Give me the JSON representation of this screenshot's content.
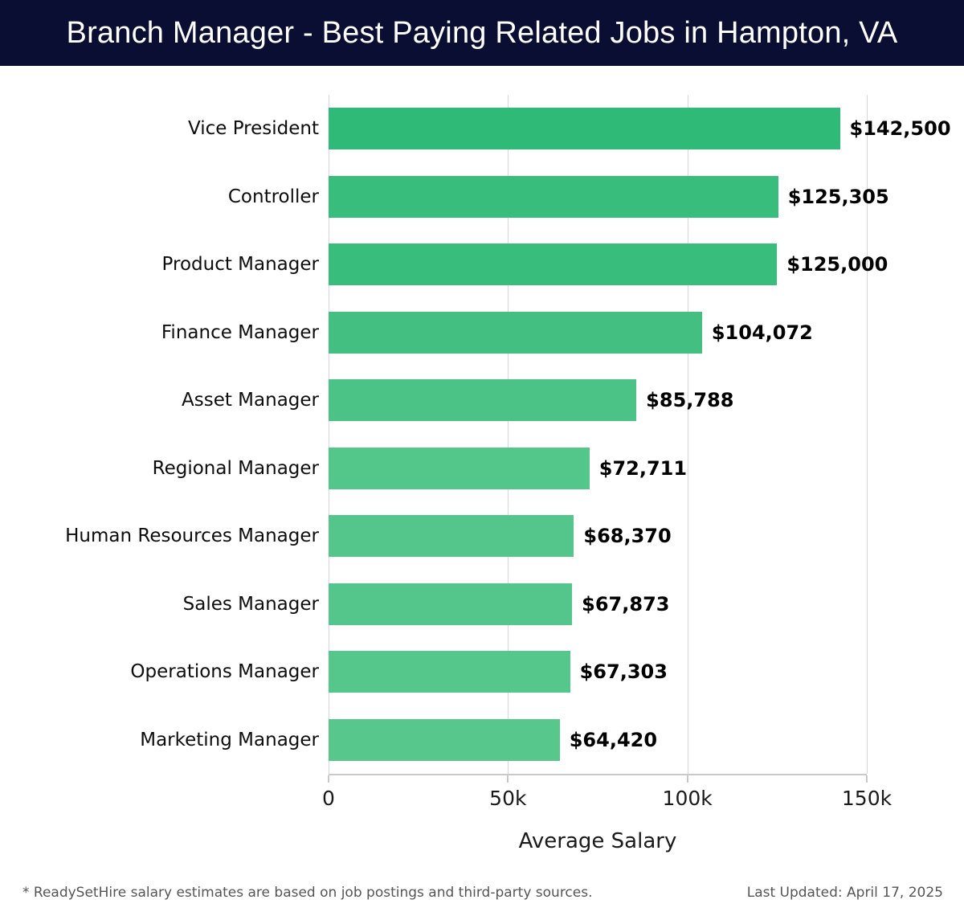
{
  "header": {
    "title": "Branch Manager - Best Paying Related Jobs in Hampton, VA",
    "background_color": "#0b0e33",
    "text_color": "#ffffff"
  },
  "chart_data": {
    "type": "bar",
    "orientation": "horizontal",
    "title": "Branch Manager - Best Paying Related Jobs in Hampton, VA",
    "categories": [
      "Vice President",
      "Controller",
      "Product Manager",
      "Finance Manager",
      "Asset Manager",
      "Regional Manager",
      "Human Resources Manager",
      "Sales Manager",
      "Operations Manager",
      "Marketing Manager"
    ],
    "values": [
      142500,
      125305,
      125000,
      104072,
      85788,
      72711,
      68370,
      67873,
      67303,
      64420
    ],
    "value_labels": [
      "$142,500",
      "$125,305",
      "$125,000",
      "$104,072",
      "$85,788",
      "$72,711",
      "$68,370",
      "$67,873",
      "$67,303",
      "$64,420"
    ],
    "xlabel": "Average Salary",
    "xlim": [
      0,
      150000
    ],
    "x_ticks": [
      {
        "value": 0,
        "label": "0"
      },
      {
        "value": 50000,
        "label": "50k"
      },
      {
        "value": 100000,
        "label": "100k"
      },
      {
        "value": 150000,
        "label": "150k"
      }
    ],
    "grid": true,
    "legend": false,
    "bar_color_high": "#2fba77",
    "bar_color_low": "#57c78c",
    "gridline_color": "#d8d8d8",
    "axis_color": "#c9c9c9"
  },
  "footer": {
    "note": "* ReadySetHire salary estimates are based on job postings and third-party sources.",
    "last_updated": "Last Updated: April 17, 2025"
  }
}
